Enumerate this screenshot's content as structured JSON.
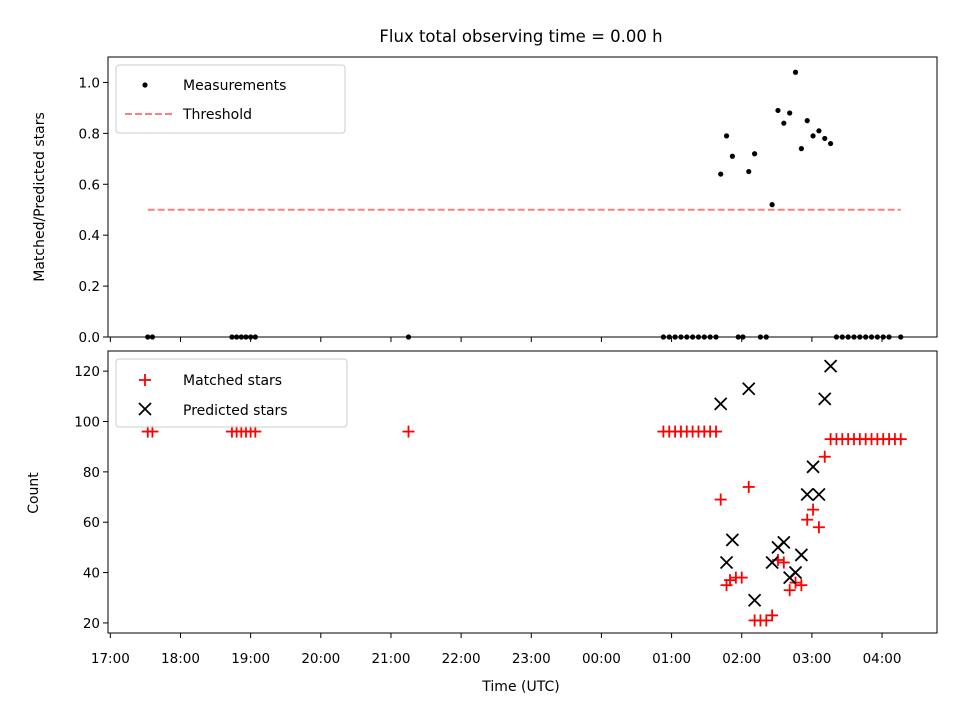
{
  "chart_data": {
    "title": "Flux total observing time = 0.00 h",
    "xlabel": "Time (UTC)",
    "x_unit": "hour",
    "x_ticks": [
      "17:00",
      "18:00",
      "19:00",
      "20:00",
      "21:00",
      "22:00",
      "23:00",
      "00:00",
      "01:00",
      "02:00",
      "03:00",
      "04:00"
    ],
    "xlim": [
      "16:58",
      "04:47"
    ],
    "panels": [
      {
        "type": "scatter",
        "ylabel": "Matched/Predicted stars",
        "ylim": [
          0,
          1.1
        ],
        "y_ticks": [
          "0.0",
          "0.2",
          "0.4",
          "0.6",
          "0.8",
          "1.0"
        ],
        "legend_position": "upper-left",
        "series": [
          {
            "name": "Measurements",
            "marker": "dot",
            "color": "#000000",
            "points": [
              [
                "17:32",
                0
              ],
              [
                "17:36",
                0
              ],
              [
                "18:44",
                0
              ],
              [
                "18:48",
                0
              ],
              [
                "18:52",
                0
              ],
              [
                "18:56",
                0
              ],
              [
                "19:00",
                0
              ],
              [
                "19:04",
                0
              ],
              [
                "21:15",
                0
              ],
              [
                "00:53",
                0
              ],
              [
                "00:58",
                0
              ],
              [
                "01:03",
                0
              ],
              [
                "01:08",
                0
              ],
              [
                "01:13",
                0
              ],
              [
                "01:18",
                0
              ],
              [
                "01:23",
                0
              ],
              [
                "01:28",
                0
              ],
              [
                "01:33",
                0
              ],
              [
                "01:38",
                0
              ],
              [
                "01:42",
                0.64
              ],
              [
                "01:47",
                0.79
              ],
              [
                "01:52",
                0.71
              ],
              [
                "01:57",
                0
              ],
              [
                "02:01",
                0
              ],
              [
                "02:06",
                0.65
              ],
              [
                "02:11",
                0.72
              ],
              [
                "02:16",
                0
              ],
              [
                "02:21",
                0
              ],
              [
                "02:26",
                0.52
              ],
              [
                "02:31",
                0.89
              ],
              [
                "02:36",
                0.84
              ],
              [
                "02:41",
                0.88
              ],
              [
                "02:46",
                1.04
              ],
              [
                "02:51",
                0.74
              ],
              [
                "02:56",
                0.85
              ],
              [
                "03:01",
                0.79
              ],
              [
                "03:06",
                0.81
              ],
              [
                "03:11",
                0.78
              ],
              [
                "03:16",
                0.76
              ],
              [
                "03:21",
                0
              ],
              [
                "03:26",
                0
              ],
              [
                "03:31",
                0
              ],
              [
                "03:36",
                0
              ],
              [
                "03:41",
                0
              ],
              [
                "03:46",
                0
              ],
              [
                "03:51",
                0
              ],
              [
                "03:56",
                0
              ],
              [
                "04:01",
                0
              ],
              [
                "04:06",
                0
              ],
              [
                "04:16",
                0
              ]
            ]
          },
          {
            "name": "Threshold",
            "type": "line",
            "style": "dashed",
            "color": "#ff7f7f",
            "points": [
              [
                "17:32",
                0.5
              ],
              [
                "04:16",
                0.5
              ]
            ]
          }
        ]
      },
      {
        "type": "scatter",
        "ylabel": "Count",
        "ylim": [
          16,
          128
        ],
        "y_ticks": [
          "20",
          "40",
          "60",
          "80",
          "100",
          "120"
        ],
        "legend_position": "upper-left",
        "series": [
          {
            "name": "Matched stars",
            "marker": "plus",
            "color": "#ff0000",
            "points": [
              [
                "17:32",
                96
              ],
              [
                "17:36",
                96
              ],
              [
                "18:44",
                96
              ],
              [
                "18:48",
                96
              ],
              [
                "18:52",
                96
              ],
              [
                "18:56",
                96
              ],
              [
                "19:00",
                96
              ],
              [
                "19:04",
                96
              ],
              [
                "21:15",
                96
              ],
              [
                "00:53",
                96
              ],
              [
                "00:58",
                96
              ],
              [
                "01:03",
                96
              ],
              [
                "01:08",
                96
              ],
              [
                "01:13",
                96
              ],
              [
                "01:18",
                96
              ],
              [
                "01:23",
                96
              ],
              [
                "01:28",
                96
              ],
              [
                "01:33",
                96
              ],
              [
                "01:38",
                96
              ],
              [
                "01:42",
                69
              ],
              [
                "01:47",
                35
              ],
              [
                "01:50",
                37
              ],
              [
                "01:55",
                38
              ],
              [
                "02:00",
                38
              ],
              [
                "02:06",
                74
              ],
              [
                "02:11",
                21
              ],
              [
                "02:16",
                21
              ],
              [
                "02:21",
                21
              ],
              [
                "02:26",
                23
              ],
              [
                "02:31",
                45
              ],
              [
                "02:36",
                44
              ],
              [
                "02:41",
                33
              ],
              [
                "02:46",
                36
              ],
              [
                "02:51",
                35
              ],
              [
                "02:56",
                61
              ],
              [
                "03:01",
                65
              ],
              [
                "03:06",
                58
              ],
              [
                "03:11",
                86
              ],
              [
                "03:16",
                93
              ],
              [
                "03:21",
                93
              ],
              [
                "03:26",
                93
              ],
              [
                "03:31",
                93
              ],
              [
                "03:36",
                93
              ],
              [
                "03:41",
                93
              ],
              [
                "03:46",
                93
              ],
              [
                "03:51",
                93
              ],
              [
                "03:56",
                93
              ],
              [
                "04:01",
                93
              ],
              [
                "04:06",
                93
              ],
              [
                "04:11",
                93
              ],
              [
                "04:16",
                93
              ]
            ]
          },
          {
            "name": "Predicted stars",
            "marker": "x",
            "color": "#000000",
            "points": [
              [
                "01:42",
                107
              ],
              [
                "01:47",
                44
              ],
              [
                "01:52",
                53
              ],
              [
                "02:06",
                113
              ],
              [
                "02:11",
                29
              ],
              [
                "02:26",
                44
              ],
              [
                "02:31",
                50
              ],
              [
                "02:36",
                52
              ],
              [
                "02:41",
                38
              ],
              [
                "02:46",
                40
              ],
              [
                "02:51",
                47
              ],
              [
                "02:56",
                71
              ],
              [
                "03:01",
                82
              ],
              [
                "03:06",
                71
              ],
              [
                "03:11",
                109
              ],
              [
                "03:16",
                122
              ]
            ]
          }
        ]
      }
    ]
  }
}
